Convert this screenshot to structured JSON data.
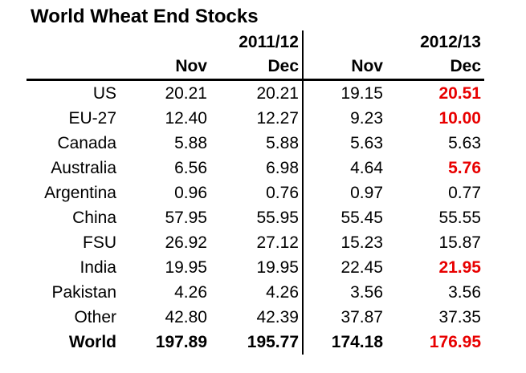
{
  "title": "World Wheat End Stocks",
  "table": {
    "groups": [
      {
        "label": "2011/12",
        "columns": [
          "Nov",
          "Dec"
        ]
      },
      {
        "label": "2012/13",
        "columns": [
          "Nov",
          "Dec"
        ]
      }
    ],
    "rows": [
      {
        "label": "US",
        "values": [
          "20.21",
          "20.21",
          "19.15",
          "20.51"
        ],
        "red": [
          false,
          false,
          false,
          true
        ],
        "bold": false
      },
      {
        "label": "EU-27",
        "values": [
          "12.40",
          "12.27",
          "9.23",
          "10.00"
        ],
        "red": [
          false,
          false,
          false,
          true
        ],
        "bold": false
      },
      {
        "label": "Canada",
        "values": [
          "5.88",
          "5.88",
          "5.63",
          "5.63"
        ],
        "red": [
          false,
          false,
          false,
          false
        ],
        "bold": false
      },
      {
        "label": "Australia",
        "values": [
          "6.56",
          "6.98",
          "4.64",
          "5.76"
        ],
        "red": [
          false,
          false,
          false,
          true
        ],
        "bold": false
      },
      {
        "label": "Argentina",
        "values": [
          "0.96",
          "0.76",
          "0.97",
          "0.77"
        ],
        "red": [
          false,
          false,
          false,
          false
        ],
        "bold": false
      },
      {
        "label": "China",
        "values": [
          "57.95",
          "55.95",
          "55.45",
          "55.55"
        ],
        "red": [
          false,
          false,
          false,
          false
        ],
        "bold": false
      },
      {
        "label": "FSU",
        "values": [
          "26.92",
          "27.12",
          "15.23",
          "15.87"
        ],
        "red": [
          false,
          false,
          false,
          false
        ],
        "bold": false
      },
      {
        "label": "India",
        "values": [
          "19.95",
          "19.95",
          "22.45",
          "21.95"
        ],
        "red": [
          false,
          false,
          false,
          true
        ],
        "bold": false
      },
      {
        "label": "Pakistan",
        "values": [
          "4.26",
          "4.26",
          "3.56",
          "3.56"
        ],
        "red": [
          false,
          false,
          false,
          false
        ],
        "bold": false
      },
      {
        "label": "Other",
        "values": [
          "42.80",
          "42.39",
          "37.87",
          "37.35"
        ],
        "red": [
          false,
          false,
          false,
          false
        ],
        "bold": false
      },
      {
        "label": "World",
        "values": [
          "197.89",
          "195.77",
          "174.18",
          "176.95"
        ],
        "red": [
          false,
          false,
          false,
          true
        ],
        "bold": true
      }
    ],
    "colors": {
      "text": "#000000",
      "highlight_red": "#e80000",
      "background": "#ffffff"
    }
  },
  "chart_data": {
    "type": "table",
    "title": "World Wheat End Stocks",
    "column_groups": [
      "2011/12",
      "2012/13"
    ],
    "columns": [
      "2011/12 Nov",
      "2011/12 Dec",
      "2012/13 Nov",
      "2012/13 Dec"
    ],
    "row_labels": [
      "US",
      "EU-27",
      "Canada",
      "Australia",
      "Argentina",
      "China",
      "FSU",
      "India",
      "Pakistan",
      "Other",
      "World"
    ],
    "values": [
      [
        20.21,
        20.21,
        19.15,
        20.51
      ],
      [
        12.4,
        12.27,
        9.23,
        10.0
      ],
      [
        5.88,
        5.88,
        5.63,
        5.63
      ],
      [
        6.56,
        6.98,
        4.64,
        5.76
      ],
      [
        0.96,
        0.76,
        0.97,
        0.77
      ],
      [
        57.95,
        55.95,
        55.45,
        55.55
      ],
      [
        26.92,
        27.12,
        15.23,
        15.87
      ],
      [
        19.95,
        19.95,
        22.45,
        21.95
      ],
      [
        4.26,
        4.26,
        3.56,
        3.56
      ],
      [
        42.8,
        42.39,
        37.87,
        37.35
      ],
      [
        197.89,
        195.77,
        174.18,
        176.95
      ]
    ],
    "red_cells": [
      {
        "row": "US",
        "column": "2012/13 Dec",
        "value": 20.51
      },
      {
        "row": "EU-27",
        "column": "2012/13 Dec",
        "value": 10.0
      },
      {
        "row": "Australia",
        "column": "2012/13 Dec",
        "value": 5.76
      },
      {
        "row": "India",
        "column": "2012/13 Dec",
        "value": 21.95
      },
      {
        "row": "World",
        "column": "2012/13 Dec",
        "value": 176.95
      }
    ],
    "bold_rows": [
      "World"
    ],
    "layout": "two column groups separated by vertical rule; horizontal rule under Nov/Dec header row; all numbers right-aligned"
  }
}
